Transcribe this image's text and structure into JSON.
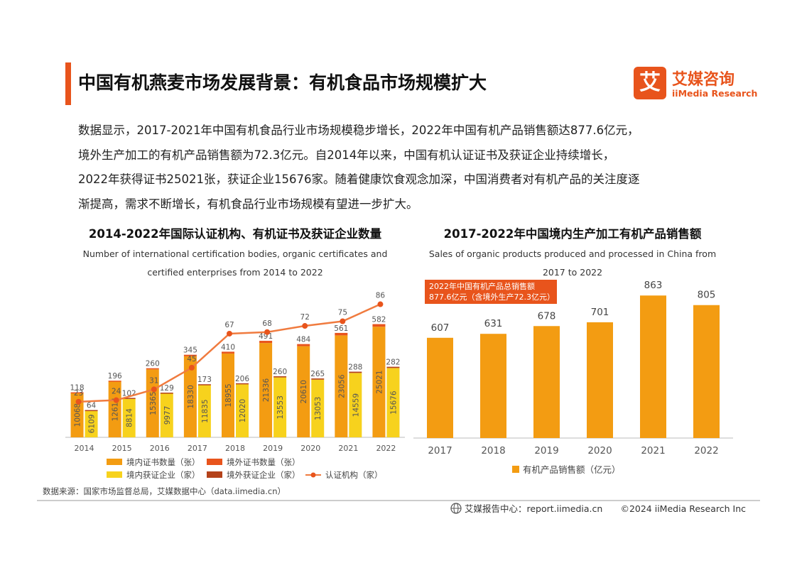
{
  "page": {
    "title": "中国有机燕麦市场发展背景：有机食品市场规模扩大",
    "logo_cn": "艾媒咨询",
    "logo_en": "iiMedia Research",
    "logo_mark": "艾",
    "intro_lines": [
      "数据显示，2017-2021年中国有机食品行业市场规模稳步增长，2022年中国有机产品销售额达877.6亿元，",
      "境外生产加工的有机产品销售额为72.3亿元。自2014年以来，中国有机认证证书及获证企业持续增长，",
      "2022年获得证书25021张，获证企业15676家。随着健康饮食观念加深，中国消费者对有机产品的关注度逐",
      "渐提高，需求不断增长，有机食品行业市场规模有望进一步扩大。"
    ],
    "source": "数据来源：国家市场监督总局，艾媒数据中心（data.iimedia.cn）",
    "footer_center": "艾媒报告中心：report.iimedia.cn",
    "footer_right": "©2024  iiMedia Research Inc",
    "accent": "#e8541c"
  },
  "chart_data": [
    {
      "type": "bar",
      "title": "2014-2022年国际认证机构、有机证书及获证企业数量",
      "subtitle_lines": [
        "Number of international certification bodies, organic certificates and",
        "certified enterprises from 2014 to 2022"
      ],
      "categories": [
        "2014",
        "2015",
        "2016",
        "2017",
        "2018",
        "2019",
        "2020",
        "2021",
        "2022"
      ],
      "series": [
        {
          "name": "境内证书数量（张）",
          "values": [
            10068,
            12614,
            15365,
            18330,
            18955,
            21336,
            20610,
            23056,
            25021
          ],
          "color": "#f39c12",
          "stack": "cert"
        },
        {
          "name": "境外证书数量（张）",
          "values": [
            118,
            196,
            260,
            345,
            410,
            491,
            484,
            561,
            582
          ],
          "color": "#e8541c",
          "stack": "cert"
        },
        {
          "name": "境内获证企业（家）",
          "values": [
            6109,
            8814,
            9977,
            11835,
            12020,
            13553,
            13053,
            14559,
            15676
          ],
          "color": "#f7d21d",
          "stack": "ent"
        },
        {
          "name": "境外获证企业（家）",
          "values": [
            64,
            102,
            129,
            173,
            206,
            260,
            265,
            288,
            282
          ],
          "color": "#b4421a",
          "stack": "ent"
        },
        {
          "name": "认证机构（家）",
          "values": [
            23,
            24,
            31,
            45,
            67,
            68,
            72,
            75,
            86
          ],
          "color": "#f07b3f",
          "type": "line"
        }
      ],
      "ylim_bar": [
        0,
        35000
      ],
      "ylim_line": [
        0,
        100
      ]
    },
    {
      "type": "bar",
      "title": "2017-2022年中国境内生产加工有机产品销售额",
      "subtitle_lines": [
        "Sales of organic products produced and processed in China from",
        "2017 to 2022"
      ],
      "categories": [
        "2017",
        "2018",
        "2019",
        "2020",
        "2021",
        "2022"
      ],
      "series": [
        {
          "name": "有机产品销售额（亿元）",
          "values": [
            607,
            631,
            678,
            701,
            863,
            805
          ],
          "color": "#f39c12"
        }
      ],
      "annotation_lines": [
        "2022年中国有机产品总销售额",
        "877.6亿元（含境外生产72.3亿元）"
      ],
      "ylim": [
        0,
        950
      ]
    }
  ]
}
